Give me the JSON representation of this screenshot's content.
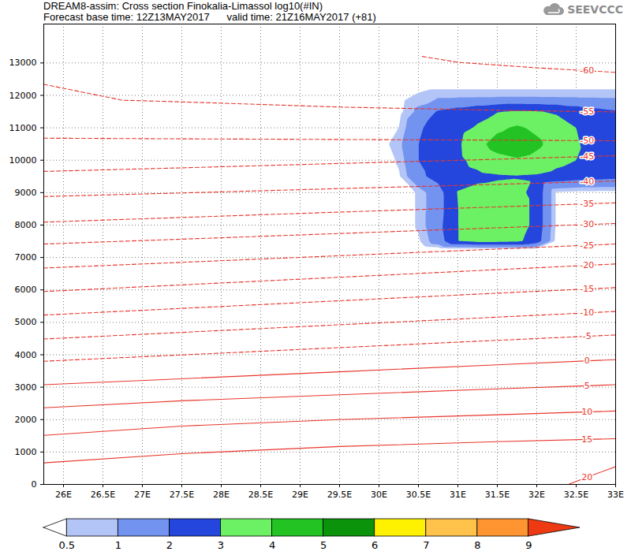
{
  "chart_data": {
    "type": "contour",
    "title": "DREAM8-assim: Cross section Finokalia-Limassol log10(#IN)",
    "subtitle": "Forecast base time: 12Z13MAY2017      valid time: 21Z16MAY2017 (+81)",
    "annotation": "SEEVCCC",
    "xlim": [
      25.75,
      33
    ],
    "xticks": [
      {
        "value": 26,
        "label": "26E"
      },
      {
        "value": 26.5,
        "label": "26.5E"
      },
      {
        "value": 27,
        "label": "27E"
      },
      {
        "value": 27.5,
        "label": "27.5E"
      },
      {
        "value": 28,
        "label": "28E"
      },
      {
        "value": 28.5,
        "label": "28.5E"
      },
      {
        "value": 29,
        "label": "29E"
      },
      {
        "value": 29.5,
        "label": "29.5E"
      },
      {
        "value": 30,
        "label": "30E"
      },
      {
        "value": 30.5,
        "label": "30.5E"
      },
      {
        "value": 31,
        "label": "31E"
      },
      {
        "value": 31.5,
        "label": "31.5E"
      },
      {
        "value": 32,
        "label": "32E"
      },
      {
        "value": 32.5,
        "label": "32.5E"
      },
      {
        "value": 33,
        "label": "33E"
      }
    ],
    "ylim": [
      0,
      14200
    ],
    "yticks": [
      0,
      1000,
      2000,
      3000,
      4000,
      5000,
      6000,
      7000,
      8000,
      9000,
      10000,
      11000,
      12000,
      13000
    ],
    "grid": true,
    "field": {
      "x": [
        29.75,
        30,
        30.25,
        30.5,
        30.75,
        31,
        31.25,
        31.5,
        31.75,
        32,
        32.25,
        32.5,
        32.75,
        33
      ],
      "y": [
        7000,
        7250,
        7500,
        8000,
        8500,
        9000,
        9500,
        10000,
        10500,
        11000,
        11500,
        12000,
        12500
      ],
      "values": [
        [
          0,
          0,
          0,
          0,
          0,
          0,
          0,
          0,
          0,
          0,
          0,
          0,
          0,
          0
        ],
        [
          0,
          0,
          0,
          0,
          0.15,
          0.2,
          0.2,
          0.2,
          0.2,
          0.2,
          0,
          0,
          0,
          0
        ],
        [
          0,
          0,
          0,
          0.4,
          1.5,
          3.0,
          3.3,
          3.3,
          3.2,
          2.5,
          0.3,
          0,
          0,
          0
        ],
        [
          0,
          0,
          0,
          0.6,
          1.7,
          3.0,
          3.5,
          3.6,
          3.5,
          2.7,
          0.4,
          0,
          0,
          0
        ],
        [
          0,
          0,
          0,
          0.6,
          1.6,
          3.0,
          3.5,
          3.6,
          3.5,
          2.7,
          0.4,
          0,
          0,
          0
        ],
        [
          0,
          0,
          0,
          0.6,
          1.6,
          3.05,
          3.25,
          3.3,
          3.25,
          2.7,
          0.4,
          0.3,
          0.3,
          0.3
        ],
        [
          0,
          0,
          0.4,
          1.8,
          2.3,
          2.6,
          2.8,
          2.9,
          2.95,
          2.9,
          2.7,
          2.5,
          2.4,
          2.3
        ],
        [
          0,
          0,
          0.6,
          2.0,
          2.4,
          2.8,
          3.3,
          3.7,
          3.9,
          3.7,
          3.3,
          3.0,
          2.7,
          2.5
        ],
        [
          0,
          0.2,
          0.8,
          2.0,
          2.5,
          2.85,
          3.7,
          4.4,
          4.6,
          4.2,
          3.6,
          3.1,
          2.6,
          2.3
        ],
        [
          0,
          0.1,
          0.5,
          1.9,
          2.3,
          2.7,
          3.1,
          3.8,
          4.15,
          3.8,
          3.4,
          3.0,
          2.6,
          2.2
        ],
        [
          0,
          0,
          0.3,
          1.2,
          2.1,
          2.4,
          2.7,
          2.95,
          3.1,
          3.05,
          2.9,
          2.6,
          2.3,
          2.1
        ],
        [
          0,
          0,
          0.2,
          0.6,
          0.8,
          0.8,
          0.8,
          0.8,
          0.8,
          0.8,
          0.8,
          0.8,
          0.8,
          0.8
        ],
        [
          0,
          0,
          0,
          0,
          0,
          0,
          0,
          0,
          0,
          0,
          0,
          0,
          0,
          0
        ]
      ]
    },
    "colorbar": {
      "levels": [
        0.5,
        1,
        2,
        3,
        4,
        5,
        6,
        7,
        8,
        9
      ],
      "colors": [
        "#ffffff",
        "#b3c5f7",
        "#7393f0",
        "#2446dc",
        "#6cf064",
        "#22c322",
        "#0b930b",
        "#fff200",
        "#ffc24a",
        "#ff9530",
        "#ee3a12"
      ]
    },
    "series": [
      {
        "name": "20",
        "color": "#e8362c",
        "line_style": "solid",
        "x": [
          32.4,
          32.7,
          33
        ],
        "values": [
          0,
          280,
          550
        ]
      },
      {
        "name": "15",
        "color": "#e8362c",
        "line_style": "solid",
        "x": [
          25.75,
          27.5,
          29.5,
          31.5,
          33
        ],
        "values": [
          665,
          950,
          1170,
          1320,
          1410
        ]
      },
      {
        "name": "10",
        "color": "#e8362c",
        "line_style": "solid",
        "x": [
          25.75,
          27.5,
          29.5,
          31.5,
          33
        ],
        "values": [
          1515,
          1800,
          2000,
          2150,
          2265
        ]
      },
      {
        "name": "5",
        "color": "#e8362c",
        "line_style": "solid",
        "x": [
          25.75,
          27.5,
          29.5,
          31.5,
          33
        ],
        "values": [
          2365,
          2580,
          2765,
          2950,
          3075
        ]
      },
      {
        "name": "0",
        "color": "#e8362c",
        "line_style": "solid",
        "x": [
          25.75,
          27.5,
          29.5,
          31.5,
          33
        ],
        "values": [
          3075,
          3260,
          3475,
          3690,
          3850
        ]
      },
      {
        "name": "-5",
        "color": "#e8362c",
        "line_style": "dashed",
        "x": [
          25.75,
          27.5,
          29.5,
          31.5,
          33
        ],
        "values": [
          3800,
          3995,
          4220,
          4445,
          4610
        ]
      },
      {
        "name": "-10",
        "color": "#e8362c",
        "line_style": "dashed",
        "x": [
          25.75,
          27.5,
          29.5,
          31.5,
          33
        ],
        "values": [
          4485,
          4690,
          4925,
          5160,
          5335
        ]
      },
      {
        "name": "-15",
        "color": "#e8362c",
        "line_style": "dashed",
        "x": [
          25.75,
          27.5,
          29.5,
          31.5,
          33
        ],
        "values": [
          5225,
          5430,
          5665,
          5900,
          6070
        ]
      },
      {
        "name": "-20",
        "color": "#e8362c",
        "line_style": "dashed",
        "x": [
          25.75,
          27.5,
          29.5,
          31.5,
          33
        ],
        "values": [
          5950,
          6155,
          6390,
          6625,
          6800
        ]
      },
      {
        "name": "-25",
        "color": "#e8362c",
        "line_style": "dashed",
        "x": [
          25.75,
          27.5,
          29.5,
          31.5,
          33
        ],
        "values": [
          6675,
          6850,
          7055,
          7260,
          7415
        ]
      },
      {
        "name": "-30",
        "color": "#e8362c",
        "line_style": "dashed",
        "x": [
          25.75,
          27.5,
          29.5,
          31.5,
          33
        ],
        "values": [
          7415,
          7565,
          7740,
          7915,
          8050
        ]
      },
      {
        "name": "-35",
        "color": "#e8362c",
        "line_style": "dashed",
        "x": [
          25.75,
          27.5,
          29.5,
          31.5,
          33
        ],
        "values": [
          8090,
          8235,
          8400,
          8560,
          8685
        ]
      },
      {
        "name": "-40",
        "color": "#e8362c",
        "line_style": "dashed",
        "x": [
          25.75,
          27.5,
          29.5,
          31.5,
          33
        ],
        "values": [
          8880,
          8990,
          9125,
          9255,
          9360
        ]
      },
      {
        "name": "-45",
        "color": "#e8362c",
        "line_style": "dashed",
        "x": [
          25.75,
          27.5,
          29.5,
          31.5,
          33
        ],
        "values": [
          9655,
          9765,
          9900,
          10030,
          10140
        ]
      },
      {
        "name": "-50",
        "color": "#e8362c",
        "line_style": "dashed",
        "x": [
          25.75,
          27.5,
          29.5,
          31.5,
          33
        ],
        "values": [
          10680,
          10660,
          10640,
          10620,
          10600
        ]
      },
      {
        "name": "-55",
        "color": "#e8362c",
        "line_style": "dashed",
        "x": [
          25.75,
          26.75,
          27.5,
          29.5,
          31.5,
          33
        ],
        "values": [
          12340,
          11850,
          11800,
          11640,
          11540,
          11490
        ]
      },
      {
        "name": "-60",
        "color": "#e8362c",
        "line_style": "dashed",
        "x": [
          30.55,
          31,
          32,
          33
        ],
        "values": [
          13200,
          13020,
          12850,
          12710
        ]
      }
    ]
  }
}
